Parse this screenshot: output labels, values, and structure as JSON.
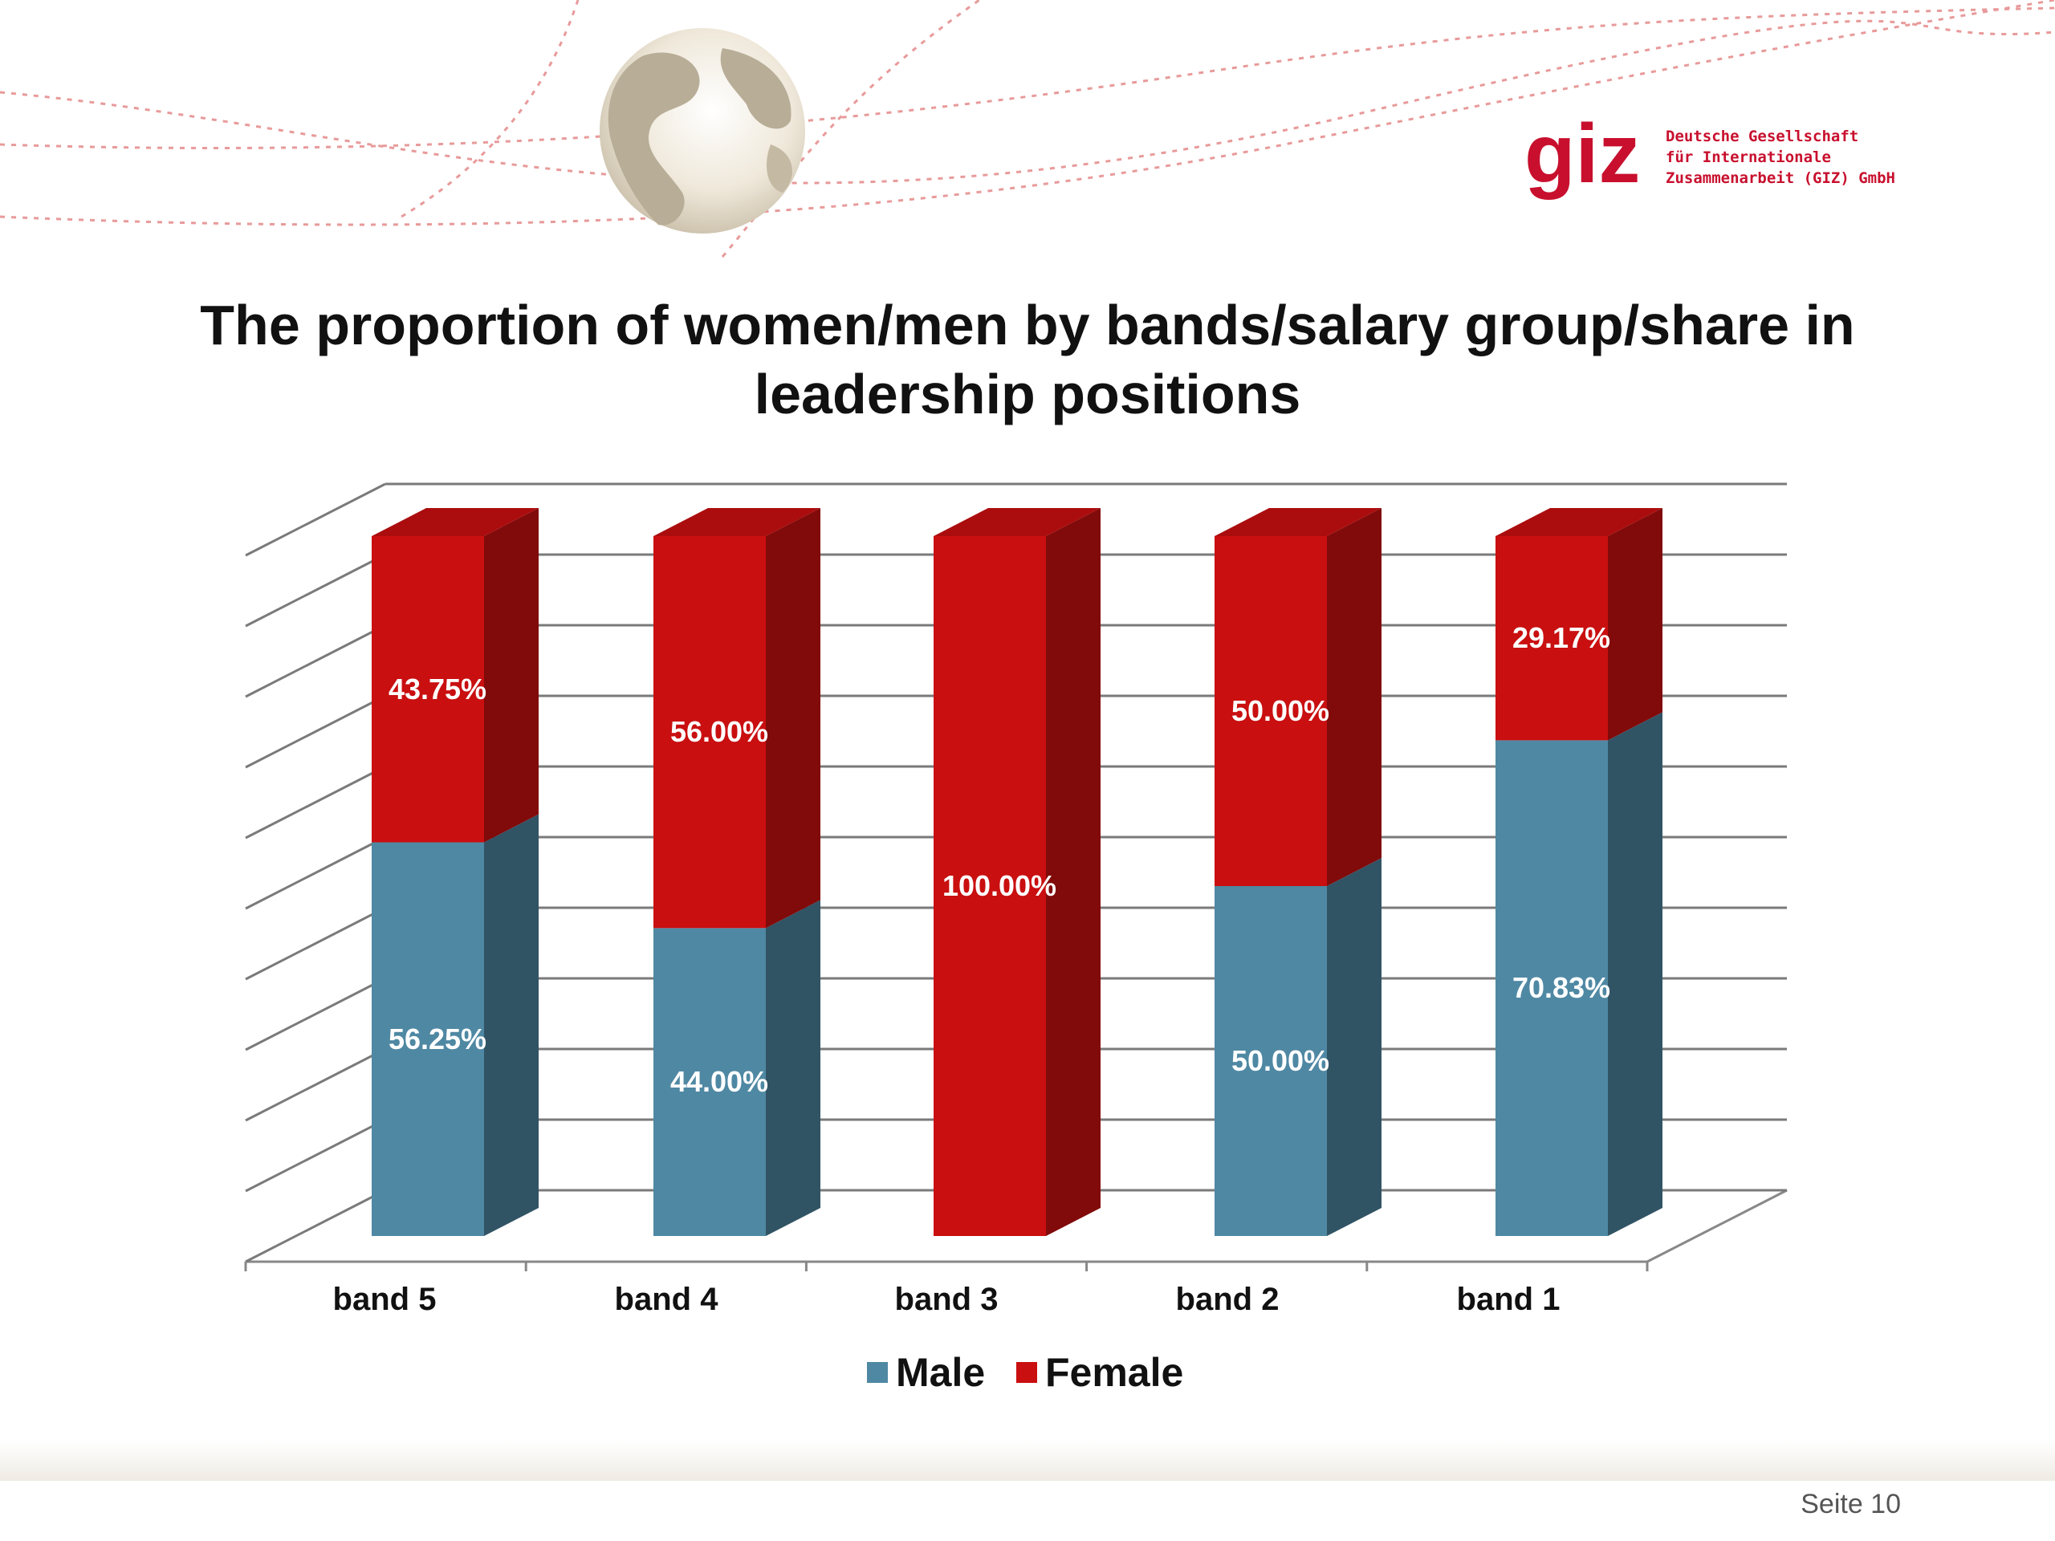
{
  "title_lines": [
    "The proportion of women/men by bands/salary group/share in",
    "leadership positions"
  ],
  "logo": {
    "wordmark": "giz",
    "lines": [
      "Deutsche Gesellschaft",
      "für Internationale",
      "Zusammenarbeit (GIZ) GmbH"
    ],
    "color": "#c8102e"
  },
  "decoration": {
    "globe-icon": "globe-icon"
  },
  "footer": {
    "page": "Seite 10"
  },
  "colors": {
    "male": "#4f88a3",
    "female": "#c90f10"
  },
  "chart_data": {
    "type": "bar",
    "stacked": true,
    "three_d": true,
    "categories": [
      "band 5",
      "band 4",
      "band 3",
      "band 2",
      "band 1"
    ],
    "series": [
      {
        "name": "Male",
        "values": [
          56.25,
          44.0,
          0.0,
          50.0,
          70.83
        ],
        "labels": [
          "56.25%",
          "44.00%",
          "",
          "50.00%",
          "70.83%"
        ]
      },
      {
        "name": "Female",
        "values": [
          43.75,
          56.0,
          100.0,
          50.0,
          29.17
        ],
        "labels": [
          "43.75%",
          "56.00%",
          "100.00%",
          "50.00%",
          "29.17%"
        ]
      }
    ],
    "ylim": [
      0,
      100
    ],
    "grid": true,
    "legend": "bottom"
  }
}
